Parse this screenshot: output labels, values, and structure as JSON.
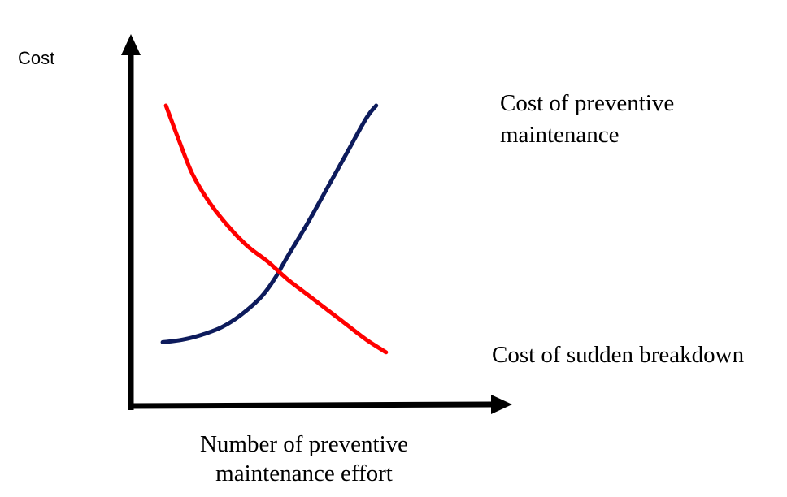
{
  "chart_data": {
    "type": "line",
    "title": "",
    "ylabel": "Cost",
    "xlabel": [
      "Number of preventive",
      "maintenance effort"
    ],
    "grid": false,
    "axes_style": "arrowed",
    "series": [
      {
        "label_lines": [
          "Cost of preventive",
          "maintenance"
        ],
        "color": "#0d1b5c",
        "trend": "increasing",
        "points": [
          [
            0.02,
            0.06
          ],
          [
            0.08,
            0.07
          ],
          [
            0.14,
            0.09
          ],
          [
            0.2,
            0.12
          ],
          [
            0.26,
            0.17
          ],
          [
            0.32,
            0.24
          ],
          [
            0.36,
            0.31
          ],
          [
            0.4,
            0.4
          ],
          [
            0.46,
            0.53
          ],
          [
            0.52,
            0.67
          ],
          [
            0.58,
            0.81
          ],
          [
            0.64,
            0.95
          ],
          [
            0.67,
            1.0
          ]
        ]
      },
      {
        "label_lines": [
          "Cost of sudden breakdown"
        ],
        "color": "#ff0000",
        "trend": "decreasing",
        "points": [
          [
            0.03,
            1.0
          ],
          [
            0.07,
            0.86
          ],
          [
            0.11,
            0.73
          ],
          [
            0.16,
            0.62
          ],
          [
            0.22,
            0.52
          ],
          [
            0.28,
            0.44
          ],
          [
            0.34,
            0.38
          ],
          [
            0.4,
            0.31
          ],
          [
            0.46,
            0.25
          ],
          [
            0.52,
            0.19
          ],
          [
            0.58,
            0.13
          ],
          [
            0.64,
            0.07
          ],
          [
            0.7,
            0.02
          ]
        ]
      }
    ]
  }
}
